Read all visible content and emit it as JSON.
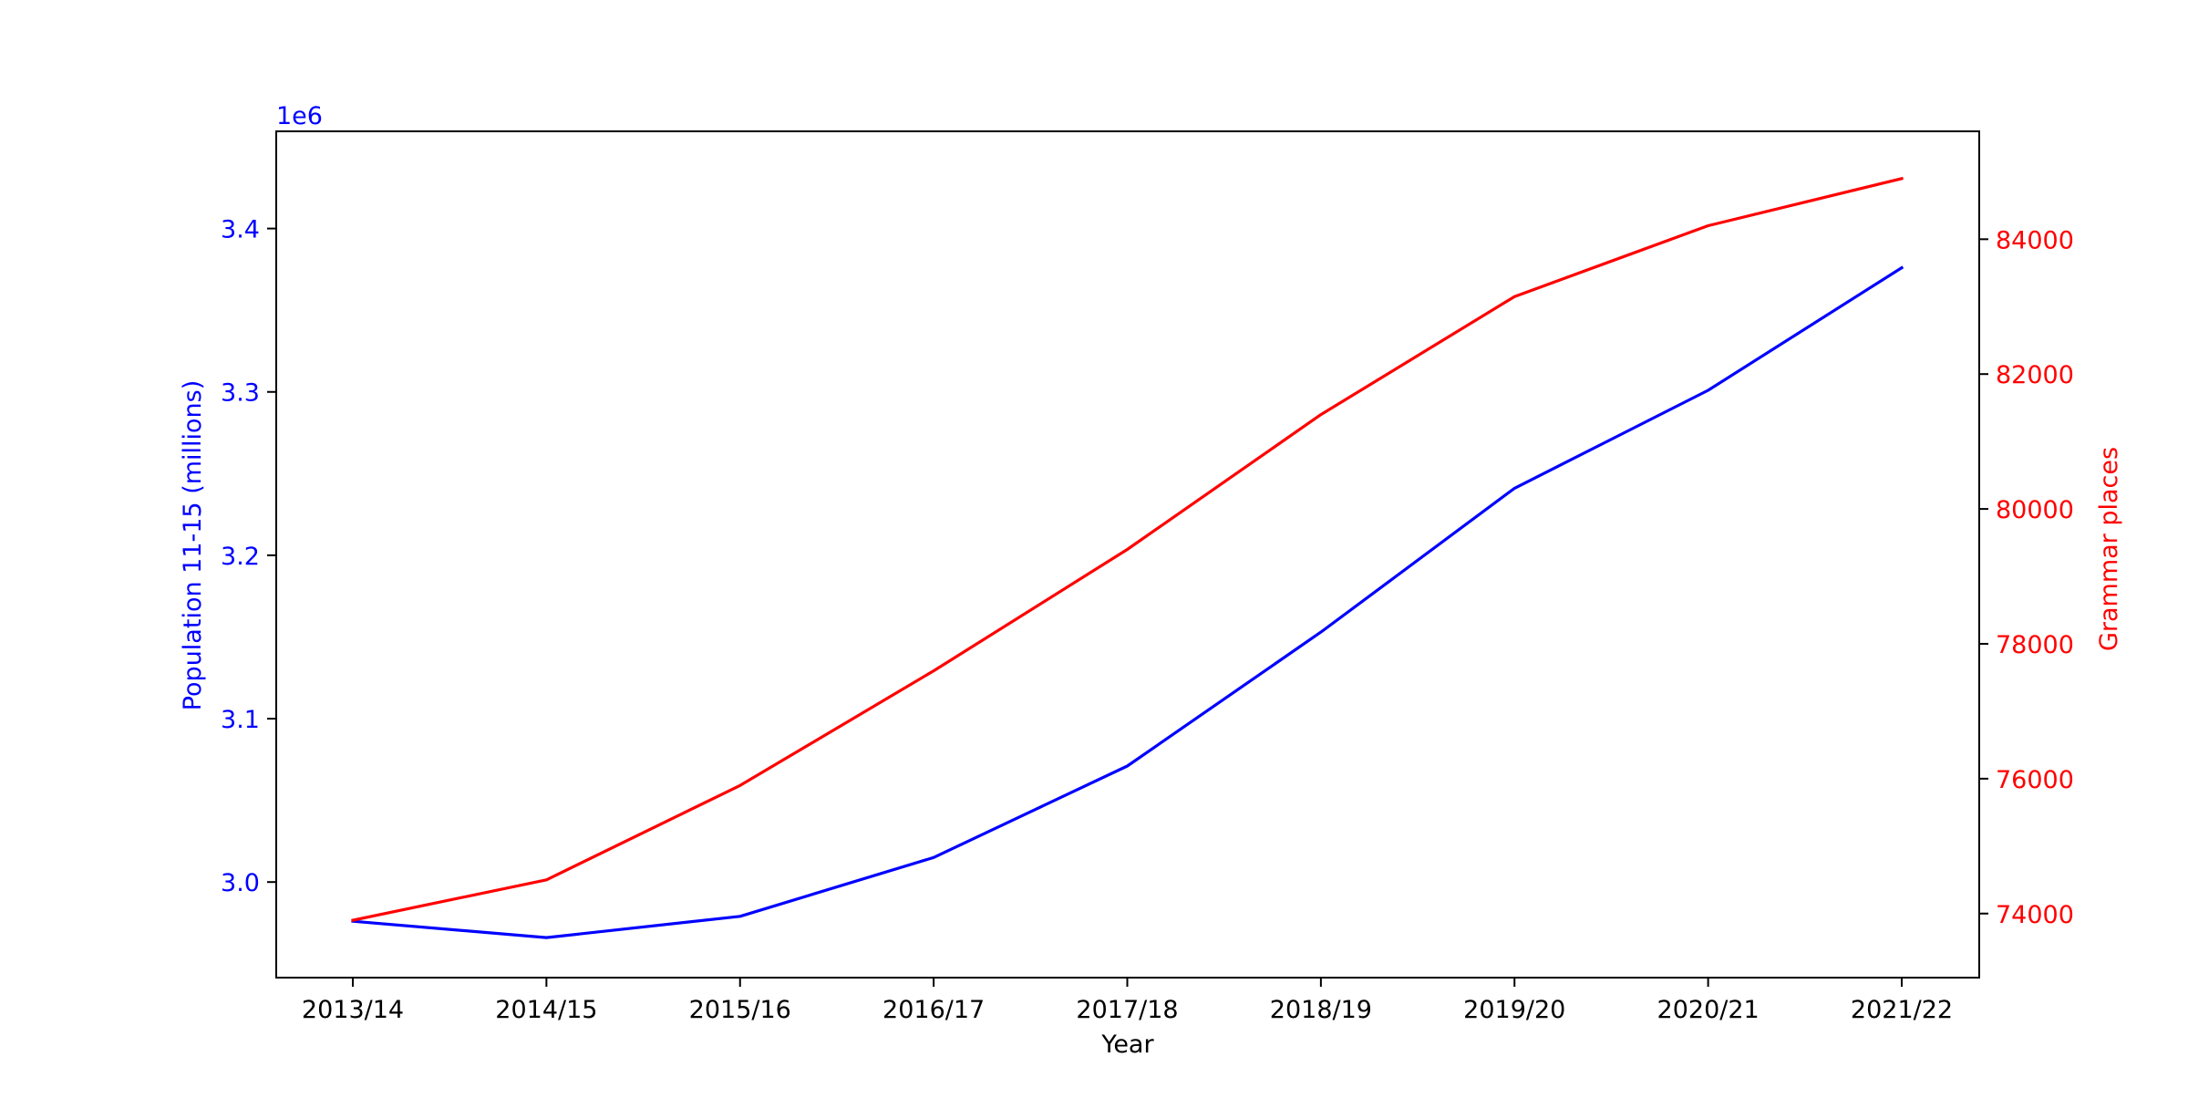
{
  "chart_data": {
    "type": "line",
    "title": "",
    "categories": [
      "2013/14",
      "2014/15",
      "2015/16",
      "2016/17",
      "2017/18",
      "2018/19",
      "2019/20",
      "2020/21",
      "2021/22"
    ],
    "xlabel": "Year",
    "y_left": {
      "label": "Population 11-15 (millions)",
      "offset_text": "1e6",
      "ticks": [
        3.0,
        3.1,
        3.2,
        3.3,
        3.4
      ],
      "tick_labels": [
        "3.0",
        "3.1",
        "3.2",
        "3.3",
        "3.4"
      ],
      "range": [
        2.9415,
        3.4595
      ],
      "color": "#0000ff"
    },
    "y_right": {
      "label": "Grammar places",
      "ticks": [
        74000,
        76000,
        78000,
        80000,
        82000,
        84000
      ],
      "tick_labels": [
        "74000",
        "76000",
        "78000",
        "80000",
        "82000",
        "84000"
      ],
      "range": [
        73050,
        85600
      ],
      "color": "#ff0000"
    },
    "series": [
      {
        "axis": "left",
        "color": "#0000ff",
        "values": [
          2.976,
          2.966,
          2.979,
          3.015,
          3.071,
          3.153,
          3.241,
          3.301,
          3.376
        ]
      },
      {
        "axis": "right",
        "color": "#ff0000",
        "values": [
          73900,
          74500,
          75900,
          77600,
          79400,
          81400,
          83150,
          84200,
          84900
        ]
      }
    ],
    "grid": false,
    "legend": "none"
  }
}
